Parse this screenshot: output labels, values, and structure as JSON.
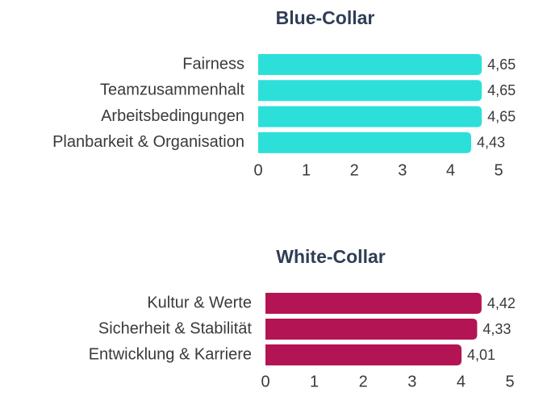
{
  "chart_data": [
    {
      "type": "barh",
      "title": "Blue-Collar",
      "categories": [
        "Fairness",
        "Teamzusammenhalt",
        "Arbeitsbedingungen",
        "Planbarkeit & Organisation"
      ],
      "values": [
        4.65,
        4.65,
        4.65,
        4.43
      ],
      "value_labels": [
        "4,65",
        "4,65",
        "4,65",
        "4,43"
      ],
      "color": "#2ce0d9",
      "xlim": [
        0,
        5
      ],
      "xticks": [
        0,
        1,
        2,
        3,
        4,
        5
      ]
    },
    {
      "type": "barh",
      "title": "White-Collar",
      "categories": [
        "Kultur & Werte",
        "Sicherheit & Stabilität",
        "Entwicklung & Karriere"
      ],
      "values": [
        4.42,
        4.33,
        4.01
      ],
      "value_labels": [
        "4,42",
        "4,33",
        "4,01"
      ],
      "color": "#b31454",
      "xlim": [
        0,
        5
      ],
      "xticks": [
        0,
        1,
        2,
        3,
        4,
        5
      ]
    }
  ]
}
